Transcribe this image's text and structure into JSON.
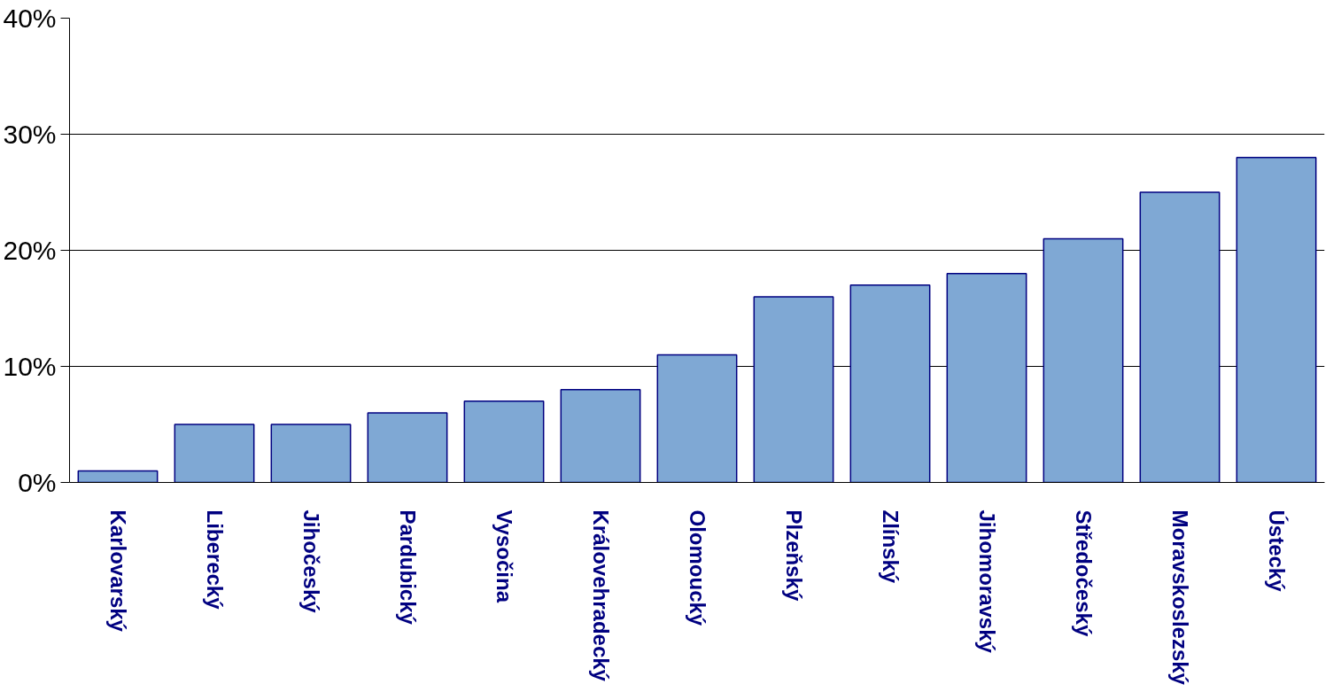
{
  "chart_data": {
    "type": "bar",
    "categories": [
      "Karlovarský",
      "Liberecký",
      "Jihočeský",
      "Pardubický",
      "Vysočina",
      "Královehradecký",
      "Olomoucký",
      "Plzeňský",
      "Zlínský",
      "Jihomoravský",
      "Středočeský",
      "Moravskoslezský",
      "Ústecký"
    ],
    "values": [
      1,
      5,
      5,
      6,
      7,
      8,
      11,
      16,
      17,
      18,
      21,
      25,
      28
    ],
    "color": "#7fa8d4",
    "ylim": [
      0,
      40
    ],
    "yticks": [
      {
        "value": 0,
        "label": "0%"
      },
      {
        "value": 10,
        "label": "10%"
      },
      {
        "value": 20,
        "label": "20%"
      },
      {
        "value": 30,
        "label": "30%"
      },
      {
        "value": 40,
        "label": "40%"
      }
    ],
    "grid": "y"
  }
}
